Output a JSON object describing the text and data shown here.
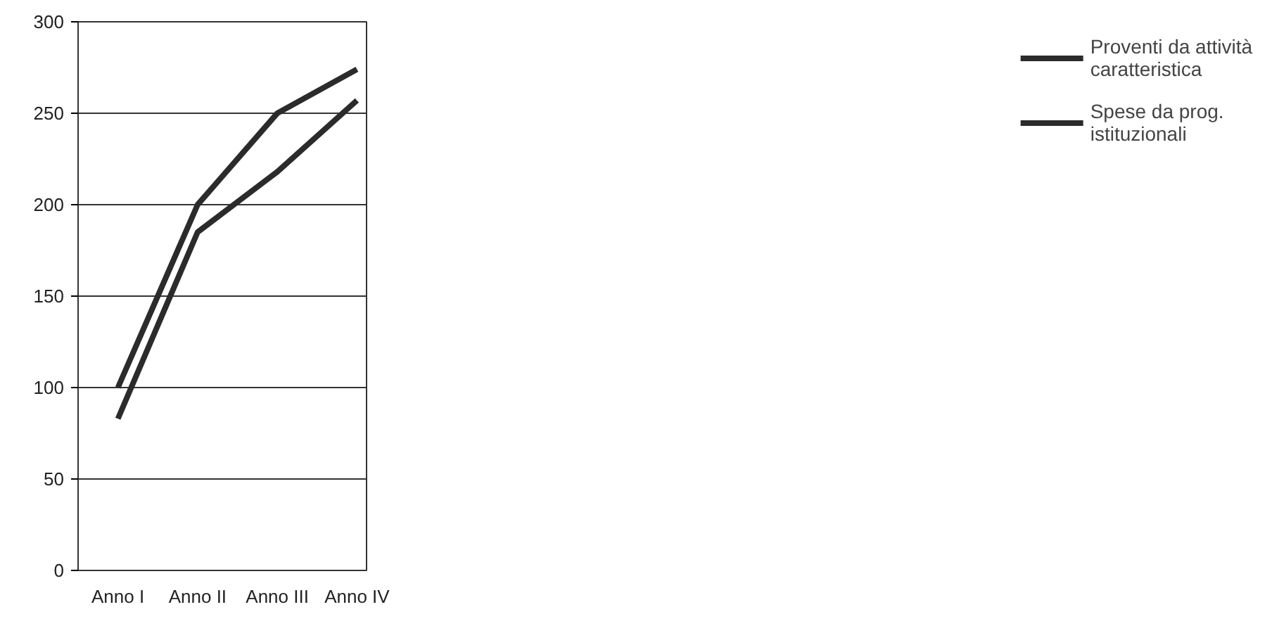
{
  "chart_data": {
    "type": "line",
    "categories": [
      "Anno I",
      "Anno II",
      "Anno III",
      "Anno IV"
    ],
    "series": [
      {
        "name": "Proventi da attività caratteristica",
        "color": "#2b2b2b",
        "values": [
          100,
          200,
          250,
          274
        ]
      },
      {
        "name": "Spese da prog. istituzionali",
        "color": "#2b2b2b",
        "values": [
          83,
          185,
          218,
          257
        ]
      }
    ],
    "ylim": [
      0,
      300
    ],
    "yticks": [
      0,
      50,
      100,
      150,
      200,
      250,
      300
    ],
    "grid": "y",
    "legend": "right",
    "marker": "none",
    "line_style": "solid"
  }
}
